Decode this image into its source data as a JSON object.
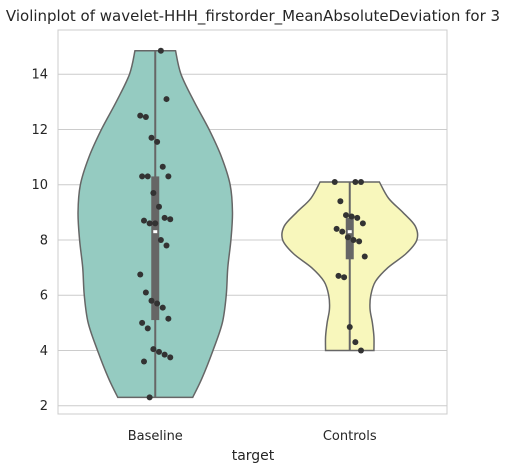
{
  "chart_data": {
    "type": "violin",
    "title": "Violinplot of wavelet-HHH_firstorder_MeanAbsoluteDeviation for 3",
    "xlabel": "target",
    "ylabel": "",
    "ylim": [
      1.7,
      15.6
    ],
    "yticks": [
      2,
      4,
      6,
      8,
      10,
      12,
      14
    ],
    "grid": true,
    "categories": [
      "Baseline",
      "Controls"
    ],
    "colors": {
      "Baseline": "#95cbc1",
      "Controls": "#f8f7bc",
      "outline": "#666666",
      "points": "#333333",
      "grid": "#cccccc"
    },
    "series": [
      {
        "category": "Baseline",
        "min": 2.3,
        "q1": 5.1,
        "median": 8.3,
        "q3": 10.3,
        "max": 14.85,
        "points": [
          14.85,
          13.1,
          12.5,
          12.45,
          11.7,
          11.55,
          10.65,
          10.3,
          10.3,
          10.3,
          9.7,
          9.2,
          8.8,
          8.75,
          8.7,
          8.6,
          8.6,
          8.0,
          7.8,
          6.75,
          6.1,
          5.8,
          5.7,
          5.55,
          5.15,
          5.0,
          4.8,
          4.05,
          3.95,
          3.85,
          3.75,
          3.6,
          2.3
        ],
        "density": [
          [
            2.3,
            0.48
          ],
          [
            3.0,
            0.6
          ],
          [
            4.0,
            0.74
          ],
          [
            5.0,
            0.86
          ],
          [
            6.0,
            0.91
          ],
          [
            7.0,
            0.93
          ],
          [
            8.0,
            0.97
          ],
          [
            9.0,
            0.99
          ],
          [
            10.0,
            0.96
          ],
          [
            11.0,
            0.85
          ],
          [
            12.0,
            0.69
          ],
          [
            13.0,
            0.5
          ],
          [
            14.0,
            0.33
          ],
          [
            14.85,
            0.26
          ]
        ]
      },
      {
        "category": "Controls",
        "min": 4.0,
        "q1": 7.3,
        "median": 8.3,
        "q3": 8.8,
        "max": 10.1,
        "points": [
          10.1,
          10.1,
          10.1,
          9.4,
          8.9,
          8.85,
          8.8,
          8.6,
          8.4,
          8.3,
          8.1,
          8.0,
          7.95,
          7.4,
          6.7,
          6.65,
          4.85,
          4.3,
          4.0
        ],
        "density": [
          [
            4.0,
            0.31
          ],
          [
            4.5,
            0.31
          ],
          [
            5.0,
            0.29
          ],
          [
            5.5,
            0.26
          ],
          [
            6.0,
            0.27
          ],
          [
            6.5,
            0.33
          ],
          [
            7.0,
            0.49
          ],
          [
            7.5,
            0.72
          ],
          [
            8.0,
            0.86
          ],
          [
            8.5,
            0.84
          ],
          [
            9.0,
            0.68
          ],
          [
            9.5,
            0.5
          ],
          [
            10.1,
            0.38
          ]
        ]
      }
    ]
  }
}
